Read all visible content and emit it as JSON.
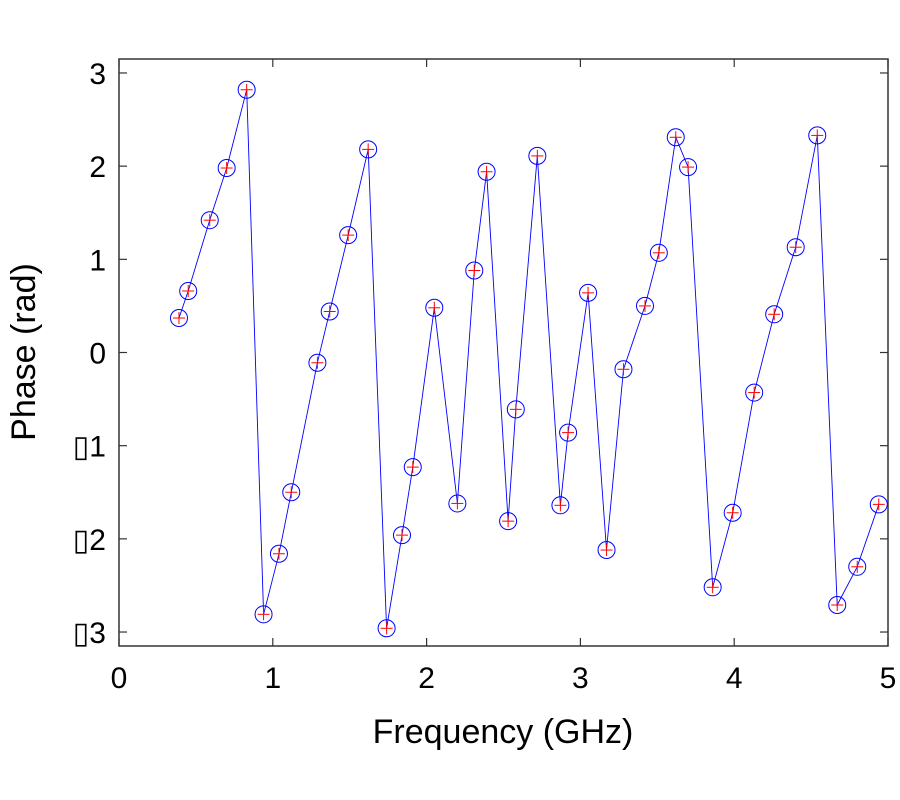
{
  "chart_data": {
    "type": "line",
    "title": "",
    "xlabel": "Frequency (GHz)",
    "ylabel": "Phase (rad)",
    "xlim": [
      0,
      5
    ],
    "ylim": [
      -3.15,
      3.15
    ],
    "xticks": [
      0,
      1,
      2,
      3,
      4,
      5
    ],
    "xtick_labels": [
      "0",
      "1",
      "2",
      "3",
      "4",
      "5"
    ],
    "yticks": [
      3,
      2,
      1,
      0,
      -1,
      -2,
      -3
    ],
    "ytick_labels": [
      "3",
      "2",
      "1",
      "0",
      "▯1",
      "▯2",
      "▯3"
    ],
    "grid": false,
    "legend": null,
    "line_color": "#0000ff",
    "marker": "circle",
    "marker_color": "#0000ff",
    "marker_cross_color": "#ff0000",
    "series": [
      {
        "x": [
          0.39,
          0.45,
          0.59,
          0.7,
          0.83,
          0.94,
          1.04,
          1.12,
          1.29,
          1.37,
          1.49,
          1.62,
          1.74,
          1.84,
          1.91,
          2.05,
          2.2,
          2.31,
          2.39,
          2.53,
          2.58,
          2.72,
          2.87,
          2.92,
          3.05,
          3.17,
          3.28,
          3.42,
          3.51,
          3.62,
          3.7,
          3.86,
          3.99,
          4.13,
          4.26,
          4.4,
          4.54,
          4.67,
          4.8,
          4.94
        ],
        "y": [
          0.37,
          0.66,
          1.42,
          1.98,
          2.82,
          -2.81,
          -2.16,
          -1.5,
          -0.11,
          0.44,
          1.26,
          2.18,
          -2.96,
          -1.96,
          -1.23,
          0.48,
          -1.62,
          0.88,
          1.94,
          -1.81,
          -0.61,
          2.11,
          -1.64,
          -0.86,
          0.64,
          -2.12,
          -0.18,
          0.5,
          1.07,
          2.31,
          1.99,
          -2.52,
          -1.72,
          -0.43,
          0.41,
          1.13,
          2.33,
          -2.71,
          -2.3,
          -1.63
        ]
      }
    ]
  }
}
